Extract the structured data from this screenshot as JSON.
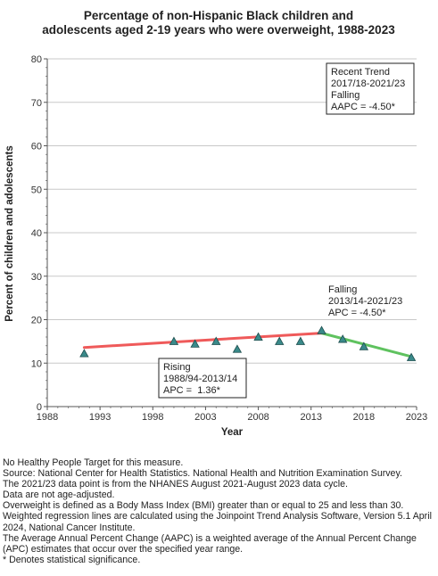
{
  "chart_data": {
    "type": "line",
    "title_lines": [
      "Percentage of non-Hispanic Black children and",
      "adolescents aged 2-19 years who were overweight, 1988-2023"
    ],
    "xlabel": "Year",
    "ylabel": "Percent of children and adolescents",
    "xlim": [
      1988,
      2023
    ],
    "ylim": [
      0,
      80
    ],
    "x_ticks": [
      "1988",
      "1993",
      "1998",
      "2003",
      "2008",
      "2013",
      "2018",
      "2023"
    ],
    "y_ticks": [
      "0",
      "10",
      "20",
      "30",
      "40",
      "50",
      "60",
      "70",
      "80"
    ],
    "grid": "horizontal",
    "observed": {
      "x": [
        1991.5,
        2000.0,
        2002.0,
        2004.0,
        2006.0,
        2008.0,
        2010.0,
        2012.0,
        2014.0,
        2016.0,
        2018.0,
        2022.5
      ],
      "y": [
        12.2,
        15.0,
        14.4,
        15.0,
        13.2,
        16.0,
        15.0,
        15.0,
        17.5,
        15.5,
        13.8,
        11.3
      ],
      "color": "#3a8a8a"
    },
    "trend_segments": [
      {
        "x": [
          1991.5,
          2014.0
        ],
        "y": [
          13.6,
          16.9
        ],
        "color": "#ef5a5a"
      },
      {
        "x": [
          2014.0,
          2022.5
        ],
        "y": [
          16.9,
          11.5
        ],
        "color": "#5fc25f"
      }
    ],
    "annotations": [
      {
        "lines": [
          "Recent Trend",
          "2017/18-2021/23",
          "Falling",
          "AAPC = -4.50*"
        ],
        "boxed": true,
        "anchor": "top-right"
      },
      {
        "lines": [
          "Falling",
          "2013/14-2021/23",
          "APC = -4.50*"
        ],
        "boxed": false,
        "anchor": "above-green-segment"
      },
      {
        "lines": [
          "Rising",
          "1988/94-2013/14",
          "APC =  1.36*"
        ],
        "boxed": true,
        "anchor": "below-red-segment"
      }
    ]
  },
  "footnotes": [
    "No Healthy People Target for this measure.",
    "Source: National Center for Health Statistics. National Health and Nutrition Examination Survey.",
    "The 2021/23 data point is from the NHANES August 2021-August 2023 data cycle.",
    "Data are not age-adjusted.",
    "Overweight is defined as a Body Mass Index (BMI) greater than or equal to 25 and less than 30.",
    "Weighted regression lines are calculated using the Joinpoint Trend Analysis Software, Version 5.1 April 2024, National Cancer Institute.",
    "The Average Annual Percent Change (AAPC) is a weighted average of the Annual Percent Change (APC) estimates that occur over the specified year range.",
    "* Denotes statistical significance."
  ]
}
